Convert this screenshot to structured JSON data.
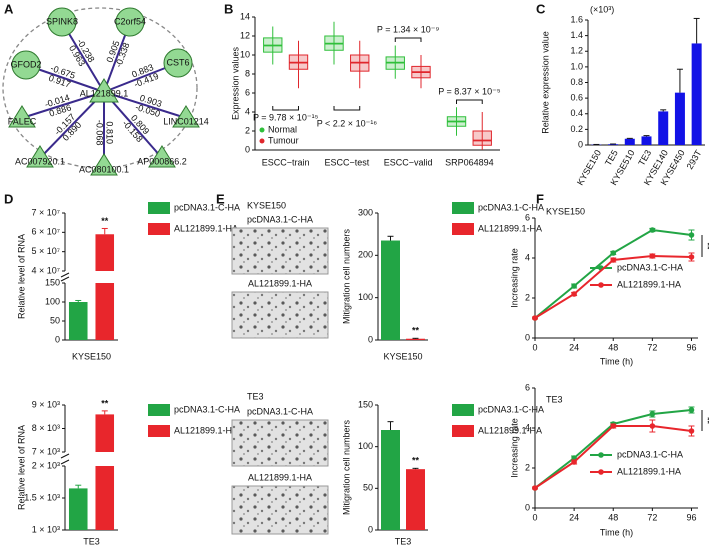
{
  "chart_data": [
    {
      "panel": "A",
      "type": "network",
      "center": "AL121899.1",
      "node_color": "#93d993",
      "node_stroke": "#2f7a2f",
      "edge_color": "#3a2a8c",
      "negative_color": "#e3262d",
      "positive_color": "#24a85a",
      "nodes": [
        {
          "label": "SPINK8",
          "shape": "circle",
          "edge_labels": [
            "-0.238",
            "0.963"
          ]
        },
        {
          "label": "C2orf54",
          "shape": "circle",
          "edge_labels": [
            "-0.338",
            "0.905"
          ]
        },
        {
          "label": "CST6",
          "shape": "circle",
          "edge_labels": [
            "-0.419",
            "0.883"
          ]
        },
        {
          "label": "GFOD2",
          "shape": "circle",
          "edge_labels": [
            "-0.675",
            "0.917"
          ]
        },
        {
          "label": "FALEC",
          "shape": "triangle",
          "edge_labels": [
            "-0.014",
            "0.886"
          ]
        },
        {
          "label": "LINC01214",
          "shape": "triangle",
          "edge_labels": [
            "-0.050",
            "0.903"
          ]
        },
        {
          "label": "AC007920.1",
          "shape": "triangle",
          "edge_labels": [
            "-0.157",
            "0.890"
          ]
        },
        {
          "label": "AC080100.1",
          "shape": "triangle",
          "edge_labels": [
            "-0.068",
            "0.810"
          ]
        },
        {
          "label": "AP000866.2",
          "shape": "triangle",
          "edge_labels": [
            "-0.158",
            "0.809"
          ]
        }
      ]
    },
    {
      "panel": "B",
      "type": "box",
      "ylabel": "Expression values",
      "categories": [
        "ESCC−train",
        "ESCC−test",
        "ESCC−valid",
        "SRP064894"
      ],
      "series": [
        {
          "name": "Normal",
          "color": "#2fbf3a",
          "values": [
            [
              9,
              10.3,
              11,
              11.8,
              13
            ],
            [
              9,
              10.5,
              11.2,
              12,
              13.5
            ],
            [
              7.5,
              8.5,
              9.2,
              9.8,
              11
            ],
            [
              1.5,
              2.5,
              3,
              3.5,
              4.5
            ]
          ]
        },
        {
          "name": "Tumour",
          "color": "#e0262c",
          "values": [
            [
              6.5,
              8.5,
              9.2,
              10,
              11.5
            ],
            [
              6.5,
              8.3,
              9.2,
              10,
              11.5
            ],
            [
              6.5,
              7.6,
              8.2,
              8.8,
              10
            ],
            [
              0,
              0.5,
              1,
              2,
              4
            ]
          ]
        }
      ],
      "ylim": [
        0,
        14
      ],
      "yticks": [
        0,
        2,
        4,
        6,
        8,
        10,
        12,
        14
      ],
      "annotations": [
        "P = 9.78 × 10⁻¹⁵",
        "P < 2.2 × 10⁻¹⁶",
        "P = 1.34 × 10⁻⁹",
        "P = 8.37 × 10⁻⁵"
      ],
      "legend": "lower left"
    },
    {
      "panel": "C",
      "type": "bar",
      "ylabel": "Relative expression value",
      "unit": "(×10³)",
      "categories": [
        "KYSE150",
        "TE5",
        "KYSE510",
        "TE3",
        "KYSE140",
        "KYSE450",
        "293T"
      ],
      "values": [
        0.005,
        0.01,
        0.08,
        0.11,
        0.43,
        0.67,
        1.3
      ],
      "errors": [
        0.002,
        0.003,
        0.005,
        0.01,
        0.02,
        0.3,
        0.32
      ],
      "color": "#1212e6",
      "ylim": [
        0,
        1.6
      ],
      "yticks": [
        0,
        0.2,
        0.4,
        0.6,
        0.8,
        {
          "value": 1,
          "label": "1.0"
        },
        1.2,
        1.4,
        1.6
      ]
    },
    {
      "panel": "D",
      "type": "broken-bar",
      "ylabel": "Relative level of RNA",
      "xlabel": "KYSE150",
      "annotation": "**",
      "series": [
        {
          "name": "pcDNA3.1-C-HA",
          "color": "#22a545",
          "values": [
            100
          ],
          "errors": [
            4
          ]
        },
        {
          "name": "AL121899.1-HA",
          "color": "#e8262c",
          "values": [
            59000000
          ],
          "errors": [
            3000000
          ]
        }
      ],
      "ylim_upper": [
        40000000,
        70000000
      ],
      "yticks_upper": [
        {
          "value": 40000000,
          "label": "4 × 10⁷"
        },
        {
          "value": 50000000,
          "label": "5 × 10⁷"
        },
        {
          "value": 60000000,
          "label": "6 × 10⁷"
        },
        {
          "value": 70000000,
          "label": "7 × 10⁷"
        }
      ],
      "ylim_lower": [
        0,
        150
      ],
      "yticks_lower": [
        0,
        50,
        100,
        150
      ]
    },
    {
      "type": "broken-bar",
      "ylabel": "Relative level of RNA",
      "xlabel": "TE3",
      "annotation": "**",
      "series": [
        {
          "name": "pcDNA3.1-C-HA",
          "color": "#22a545",
          "values": [
            1650
          ],
          "errors": [
            50
          ]
        },
        {
          "name": "AL121899.1-HA",
          "color": "#e8262c",
          "values": [
            8600
          ],
          "errors": [
            150
          ]
        }
      ],
      "ylim_upper": [
        7000,
        9000
      ],
      "yticks_upper": [
        {
          "value": 7000,
          "label": "7 × 10³"
        },
        {
          "value": 8000,
          "label": "8 × 10³"
        },
        {
          "value": 9000,
          "label": "9 × 10³"
        }
      ],
      "ylim_lower": [
        1000,
        2000
      ],
      "yticks_lower": [
        {
          "value": 1000,
          "label": "1 × 10³"
        },
        {
          "value": 1500,
          "label": "1.5 × 10³"
        },
        {
          "value": 2000,
          "label": "2 × 10³"
        }
      ]
    },
    {
      "panel": "E",
      "type": "bar-image",
      "title": "KYSE150",
      "image_labels": [
        "pcDNA3.1-C-HA",
        "AL121899.1-HA"
      ],
      "ylabel": "Mitigration cell numbers",
      "xlabel": "KYSE150",
      "annotation": "**",
      "series": [
        {
          "name": "pcDNA3.1-C-HA",
          "color": "#22a545",
          "values": [
            235
          ],
          "errors": [
            10
          ]
        },
        {
          "name": "AL121899.1-HA",
          "color": "#e8262c",
          "values": [
            3
          ],
          "errors": [
            1
          ]
        }
      ],
      "ylim": [
        0,
        300
      ],
      "yticks": [
        0,
        100,
        200,
        300
      ]
    },
    {
      "type": "bar-image",
      "title": "TE3",
      "image_labels": [
        "pcDNA3.1-C-HA",
        "AL121899.1-HA"
      ],
      "ylabel": "Mitigration cell numbers",
      "xlabel": "TE3",
      "annotation": "**",
      "series": [
        {
          "name": "pcDNA3.1-C-HA",
          "color": "#22a545",
          "values": [
            120
          ],
          "errors": [
            10
          ]
        },
        {
          "name": "AL121899.1-HA",
          "color": "#e8262c",
          "values": [
            73
          ],
          "errors": [
            1
          ]
        }
      ],
      "ylim": [
        0,
        150
      ],
      "yticks": [
        0,
        50,
        100,
        150
      ]
    },
    {
      "panel": "F",
      "type": "line",
      "title": "KYSE150",
      "xlabel": "Time (h)",
      "ylabel": "Increasing rate",
      "annotation": "**",
      "x": [
        0,
        24,
        48,
        72,
        96
      ],
      "xlim": [
        0,
        100
      ],
      "xticks": [
        0,
        24,
        48,
        72,
        96
      ],
      "series": [
        {
          "name": "pcDNA3.1-C-HA",
          "color": "#22a545",
          "values": [
            1,
            2.6,
            4.25,
            5.4,
            5.15
          ],
          "errors": [
            0.05,
            0.1,
            0.08,
            0.08,
            0.25
          ]
        },
        {
          "name": "AL121899.1-HA",
          "color": "#e8262c",
          "values": [
            1,
            2.2,
            3.9,
            4.1,
            4.05
          ],
          "errors": [
            0.05,
            0.08,
            0.1,
            0.1,
            0.2
          ]
        }
      ],
      "ylim": [
        0,
        6
      ],
      "yticks": [
        0,
        2,
        4,
        6
      ]
    },
    {
      "type": "line",
      "title": "TE3",
      "xlabel": "Time (h)",
      "ylabel": "Increasing rate",
      "annotation": "**",
      "x": [
        0,
        24,
        48,
        72,
        96
      ],
      "xlim": [
        0,
        100
      ],
      "xticks": [
        0,
        24,
        48,
        72,
        96
      ],
      "series": [
        {
          "name": "pcDNA3.1-C-HA",
          "color": "#22a545",
          "values": [
            1,
            2.5,
            4.2,
            4.7,
            4.9
          ],
          "errors": [
            0.05,
            0.1,
            0.08,
            0.15,
            0.15
          ]
        },
        {
          "name": "AL121899.1-HA",
          "color": "#e8262c",
          "values": [
            1,
            2.3,
            4.1,
            4.1,
            3.85
          ],
          "errors": [
            0.05,
            0.1,
            0.1,
            0.3,
            0.25
          ]
        }
      ],
      "ylim": [
        0,
        6
      ],
      "yticks": [
        0,
        2,
        4,
        6
      ]
    }
  ]
}
